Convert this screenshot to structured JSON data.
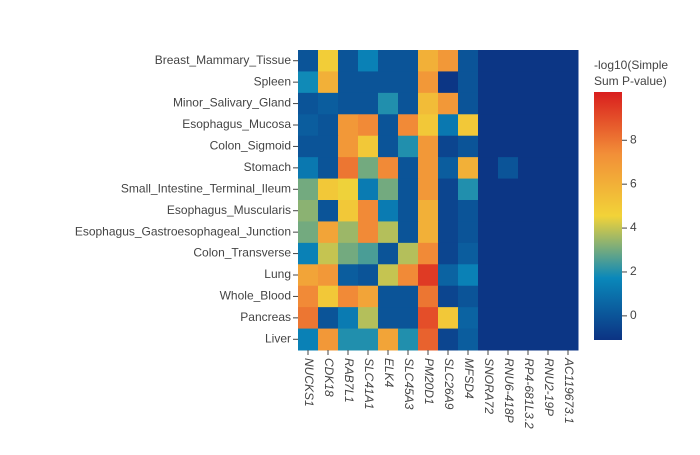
{
  "chart_data": {
    "type": "heatmap",
    "x": [
      "NUCKS1",
      "CDK18",
      "RAB7L1",
      "SLC41A1",
      "ELK4",
      "SLC45A3",
      "PM20D1",
      "SLC26A9",
      "MFSD4",
      "SNORA72",
      "RNU6-418P",
      "RP4-681L3.2",
      "RNU2-19P",
      "AC119673.1"
    ],
    "y": [
      "Breast_Mammary_Tissue",
      "Spleen",
      "Minor_Salivary_Gland",
      "Esophagus_Mucosa",
      "Colon_Sigmoid",
      "Stomach",
      "Small_Intestine_Terminal_Ileum",
      "Esophagus_Muscularis",
      "Esophagus_Gastroesophageal_Junction",
      "Colon_Transverse",
      "Lung",
      "Whole_Blood",
      "Pancreas",
      "Liver"
    ],
    "z": [
      [
        0,
        4.8,
        0,
        1.5,
        0,
        0,
        6,
        7,
        0,
        -1,
        -1,
        -1,
        -1,
        -1
      ],
      [
        1.8,
        6,
        0,
        0,
        0,
        0,
        7,
        -1,
        0,
        -1,
        -1,
        -1,
        -1,
        -1
      ],
      [
        0,
        0.3,
        0,
        0,
        2,
        0,
        5.5,
        7,
        0,
        -1,
        -1,
        -1,
        -1,
        -1
      ],
      [
        0.3,
        0,
        7,
        7.5,
        0,
        7.5,
        5,
        1.2,
        5,
        -1,
        -1,
        -1,
        -1,
        -1
      ],
      [
        0,
        0,
        7,
        5,
        0,
        2,
        7,
        -0.5,
        0,
        -1,
        -1,
        -1,
        -1,
        -1
      ],
      [
        1.2,
        0,
        8,
        3,
        7.5,
        0,
        7,
        0.3,
        6,
        -1,
        0,
        -1,
        -1,
        -1
      ],
      [
        3,
        5,
        4.5,
        1.3,
        3,
        0,
        7,
        -0.5,
        2,
        -1,
        -1,
        -1,
        -1,
        -1
      ],
      [
        3.3,
        0,
        5,
        7.5,
        1.3,
        0,
        6,
        -0.5,
        0,
        -1,
        -1,
        -1,
        -1,
        -1
      ],
      [
        3,
        6.5,
        3.5,
        7.5,
        3.8,
        0,
        6,
        -0.5,
        0,
        -1,
        -1,
        -1,
        -1,
        -1
      ],
      [
        1.5,
        4,
        3,
        2.5,
        0,
        3.8,
        7.5,
        -0.5,
        0.3,
        -1,
        -1,
        -1,
        -1,
        -1
      ],
      [
        6.5,
        7,
        0.3,
        0,
        4,
        7.5,
        9.5,
        0.5,
        1.5,
        -1,
        -1,
        -1,
        -1,
        -1
      ],
      [
        7.5,
        5,
        7.5,
        6.5,
        0,
        0,
        8,
        -0.5,
        0,
        -1,
        -1,
        -1,
        -1,
        -1
      ],
      [
        8,
        0,
        1.3,
        3.8,
        0,
        0,
        9,
        5,
        0.5,
        -1,
        -1,
        -1,
        -1,
        -1
      ],
      [
        1.5,
        7,
        2,
        2,
        6.5,
        2,
        8.5,
        -0.5,
        0.3,
        -1,
        -1,
        -1,
        -1,
        -1
      ]
    ],
    "zlim": [
      -1.1,
      10.2
    ],
    "zticks": [
      0,
      2,
      4,
      6,
      8
    ],
    "colorscale": [
      "#0c3383",
      "#0a88ba",
      "#f2d338",
      "#f28f38",
      "#d91e1e"
    ],
    "colorbar_title": [
      "-log10(Simple",
      "Sum P-value)"
    ]
  }
}
